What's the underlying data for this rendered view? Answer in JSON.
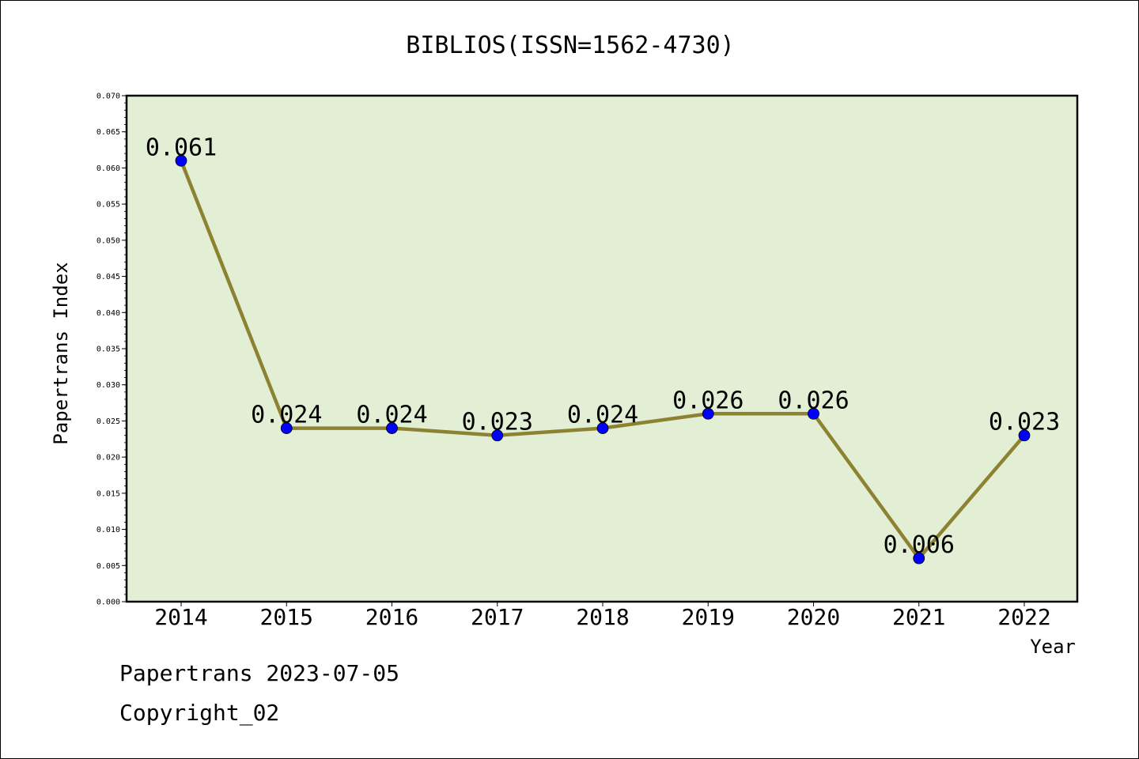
{
  "chart_data": {
    "type": "line",
    "title": "BIBLIOS(ISSN=1562-4730)",
    "xlabel": "Year",
    "ylabel": "Papertrans Index",
    "categories": [
      "2014",
      "2015",
      "2016",
      "2017",
      "2018",
      "2019",
      "2020",
      "2021",
      "2022"
    ],
    "series": [
      {
        "values": [
          0.061,
          0.024,
          0.024,
          0.023,
          0.024,
          0.026,
          0.026,
          0.006,
          0.023
        ],
        "labels": [
          "0.061",
          "0.024",
          "0.024",
          "0.023",
          "0.024",
          "0.026",
          "0.026",
          "0.006",
          "0.023"
        ]
      }
    ],
    "ylim": [
      0,
      0.07
    ],
    "yticks": [
      "0.000",
      "0.005",
      "0.010",
      "0.015",
      "0.020",
      "0.025",
      "0.030",
      "0.035",
      "0.040",
      "0.045",
      "0.050",
      "0.055",
      "0.060",
      "0.065",
      "0.070"
    ],
    "grid": false,
    "colors": {
      "plot_background": "#e2efd5",
      "line": "#8c8232",
      "marker": "#0000ff"
    }
  },
  "footer": {
    "date_line": "Papertrans 2023-07-05",
    "copyright": "Copyright_02"
  }
}
